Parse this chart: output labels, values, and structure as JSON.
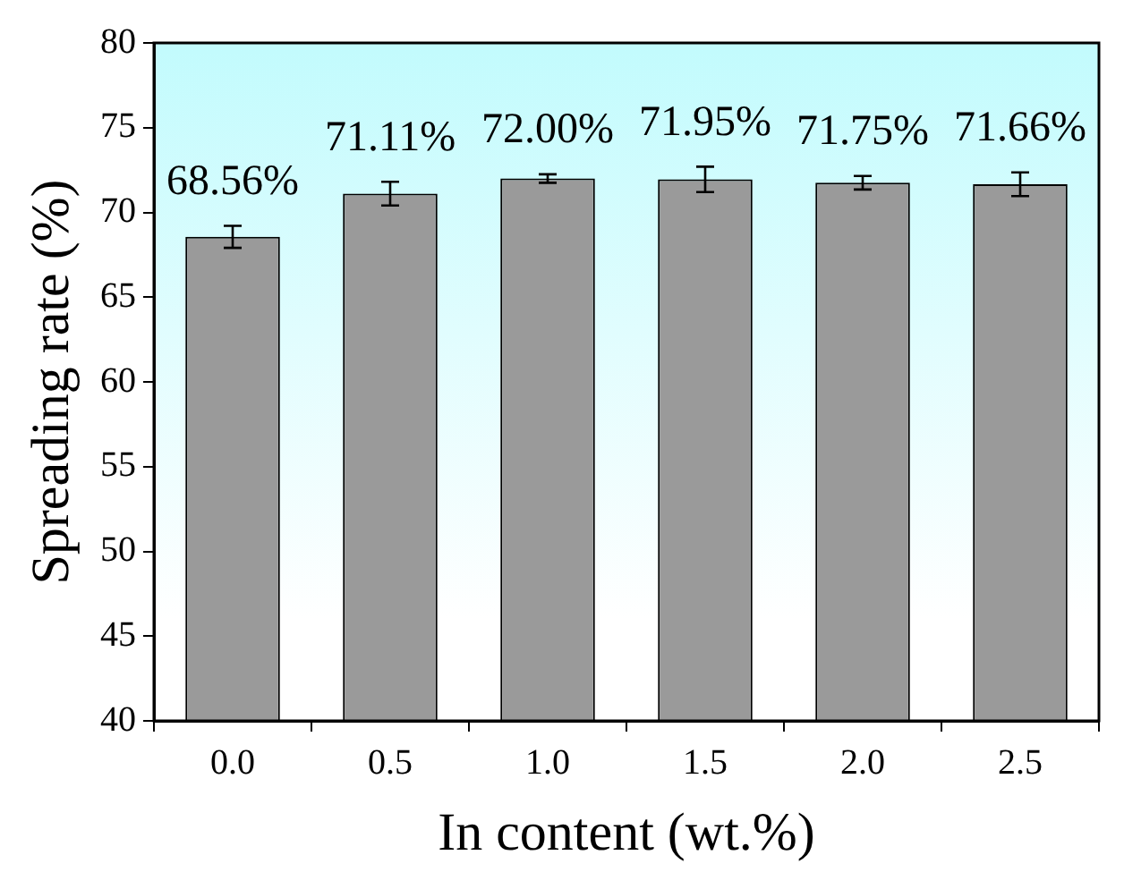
{
  "chart_data": {
    "type": "bar",
    "xlabel": "In content (wt.%)",
    "ylabel": "Spreading rate (%)",
    "categories": [
      "0.0",
      "0.5",
      "1.0",
      "1.5",
      "2.0",
      "2.5"
    ],
    "values": [
      68.56,
      71.11,
      72.0,
      71.95,
      71.75,
      71.66
    ],
    "errors": [
      0.65,
      0.7,
      0.25,
      0.75,
      0.4,
      0.7
    ],
    "value_labels": [
      "68.56%",
      "71.11%",
      "72.00%",
      "71.95%",
      "71.75%",
      "71.66%"
    ],
    "color": "#9a9a9a",
    "ylim": [
      40,
      80
    ],
    "yticks": [
      40,
      45,
      50,
      55,
      60,
      65,
      70,
      75,
      80
    ],
    "grid": false,
    "legend": false
  }
}
